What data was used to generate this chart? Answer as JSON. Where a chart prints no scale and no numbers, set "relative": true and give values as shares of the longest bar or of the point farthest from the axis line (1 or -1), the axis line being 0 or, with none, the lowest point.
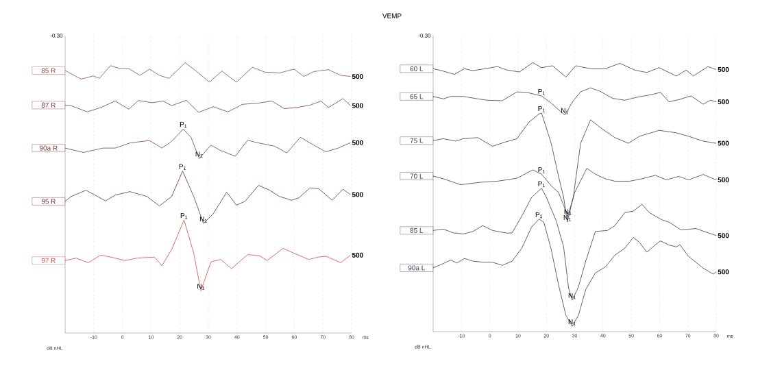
{
  "chart_data": [
    {
      "type": "line",
      "relative": true,
      "xlabel": "ms",
      "xlim": [
        -20,
        80
      ],
      "xticks": [
        -10,
        0,
        10,
        20,
        30,
        40,
        50,
        60,
        70,
        80
      ],
      "grid": "x",
      "line_style": "solid",
      "annotations": [
        "-0.30",
        "dB nHL",
        {
          "text": "P$_{1}$",
          "x": 21.3,
          "y": 0.755
        },
        {
          "text": "N$_{1}$",
          "x": 26.8,
          "y": 0.645
        },
        {
          "text": "P$_{1}$",
          "x": 21.0,
          "y": 0.599
        },
        {
          "text": "N$_{1}$",
          "x": 28.3,
          "y": 0.405
        },
        {
          "text": "P$_{1}$",
          "x": 21.5,
          "y": 0.418
        },
        {
          "text": "N$_{1}$",
          "x": 27.4,
          "y": 0.156
        },
        {
          "text": "500",
          "x": 79.6,
          "y": 0.949
        },
        {
          "text": "500",
          "x": 79.6,
          "y": 0.841
        },
        {
          "text": "500",
          "x": 79.6,
          "y": 0.704
        },
        {
          "text": "500",
          "x": 79.6,
          "y": 0.512
        },
        {
          "text": "500",
          "x": 79.6,
          "y": 0.288
        }
      ],
      "series": [
        {
          "name": "85 R",
          "color": "#8b4a4a",
          "x": [
            -20,
            -14.4,
            -10.2,
            -8.0,
            -4.2,
            -0.8,
            2.2,
            6.1,
            9.5,
            12.9,
            16.3,
            21.9,
            25.7,
            30.4,
            34.7,
            39.8,
            45.4,
            49.7,
            54.8,
            59.9,
            63.3,
            66.8,
            71.9,
            76.2,
            79.6
          ],
          "values": [
            0.971,
            0.939,
            0.951,
            0.942,
            0.989,
            0.978,
            0.978,
            0.953,
            0.976,
            0.953,
            0.942,
            1,
            0.969,
            0.928,
            0.969,
            0.928,
            0.983,
            0.965,
            0.962,
            0.976,
            0.949,
            0.967,
            0.974,
            0.953,
            0.949
          ]
        },
        {
          "name": "87 R",
          "color": "#7a3b3b",
          "x": [
            -20,
            -17.9,
            -12.3,
            -7.6,
            -2.5,
            2.2,
            5.6,
            10.3,
            14.2,
            17.2,
            22.3,
            26.6,
            31.7,
            36.8,
            42.0,
            47.1,
            52.2,
            56.5,
            60.8,
            65.5,
            69.3,
            71.9,
            77.0,
            79.6
          ],
          "values": [
            0.843,
            0.841,
            0.818,
            0.834,
            0.858,
            0.828,
            0.86,
            0.852,
            0.858,
            0.841,
            0.861,
            0.816,
            0.837,
            0.818,
            0.846,
            0.85,
            0.858,
            0.83,
            0.834,
            0.843,
            0.858,
            0.834,
            0.867,
            0.841
          ]
        },
        {
          "name": "90a R",
          "color": "#7a3b3b",
          "x": [
            -20,
            -13.6,
            -6.8,
            -2.5,
            2.6,
            9.5,
            13.8,
            17.2,
            21.3,
            24.0,
            26.8,
            30.9,
            34.3,
            39.4,
            43.7,
            47.1,
            53.1,
            57.4,
            62.1,
            66.8,
            71.0,
            75.3,
            79.6
          ],
          "values": [
            0.684,
            0.668,
            0.684,
            0.684,
            0.703,
            0.712,
            0.684,
            0.709,
            0.755,
            0.723,
            0.645,
            0.695,
            0.675,
            0.654,
            0.713,
            0.704,
            0.691,
            0.666,
            0.724,
            0.695,
            0.67,
            0.684,
            0.704
          ]
        },
        {
          "name": "95 R",
          "color": "#6b2f2f",
          "x": [
            -20,
            -17.9,
            -12.7,
            -5.9,
            -2.5,
            2.6,
            8.6,
            12.9,
            17.2,
            21.0,
            24.9,
            28.3,
            31.7,
            36.4,
            39.8,
            42.8,
            47.5,
            51.4,
            54.8,
            59.1,
            61.6,
            65.5,
            68.5,
            73.2,
            77.0,
            79.6
          ],
          "values": [
            0.487,
            0.505,
            0.528,
            0.489,
            0.51,
            0.523,
            0.505,
            0.47,
            0.505,
            0.599,
            0.505,
            0.405,
            0.441,
            0.521,
            0.473,
            0.487,
            0.546,
            0.528,
            0.505,
            0.491,
            0.5,
            0.537,
            0.534,
            0.491,
            0.532,
            0.512
          ]
        },
        {
          "name": "97 R",
          "color": "#d04848",
          "x": [
            -20,
            -16.2,
            -11.9,
            -7.6,
            -3.3,
            0.9,
            5.2,
            11.2,
            13.8,
            17.2,
            21.5,
            24.9,
            27.4,
            30.9,
            34.3,
            38.1,
            43.7,
            47.9,
            50.5,
            56.1,
            59.9,
            65.0,
            68.5,
            71.0,
            76.2,
            79.6
          ],
          "values": [
            0.268,
            0.277,
            0.26,
            0.288,
            0.279,
            0.268,
            0.277,
            0.281,
            0.249,
            0.309,
            0.418,
            0.295,
            0.156,
            0.263,
            0.272,
            0.238,
            0.29,
            0.286,
            0.268,
            0.313,
            0.295,
            0.272,
            0.281,
            0.284,
            0.26,
            0.288
          ]
        }
      ]
    },
    {
      "type": "line",
      "relative": true,
      "title": "VEMP",
      "xlabel": "ms",
      "xlim": [
        -20,
        80
      ],
      "xticks": [
        -10,
        0,
        10,
        20,
        30,
        40,
        50,
        60,
        70,
        80
      ],
      "grid": "x",
      "line_style": "solid",
      "annotations": [
        "-0.30",
        "dB nHL",
        {
          "text": "P$_{1}$",
          "x": 18.3,
          "y": 0.876
        },
        {
          "text": "N$_{1}$",
          "x": 26.5,
          "y": 0.805
        },
        {
          "text": "P$_{1}$",
          "x": 18.3,
          "y": 0.812
        },
        {
          "text": "N$_{1}$",
          "x": 27.4,
          "y": 0.407
        },
        {
          "text": "P$_{1}$",
          "x": 18.3,
          "y": 0.585
        },
        {
          "text": "N$_{1}$",
          "x": 27.6,
          "y": 0.429
        },
        {
          "text": "P$_{1}$",
          "x": 18.3,
          "y": 0.533
        },
        {
          "text": "N$_{1}$",
          "x": 29.1,
          "y": 0.117
        },
        {
          "text": "P$_{1}$",
          "x": 17.4,
          "y": 0.418
        },
        {
          "text": "N$_{1}$",
          "x": 29.1,
          "y": 0.02
        },
        {
          "text": "500",
          "x": 80,
          "y": 0.974
        },
        {
          "text": "500",
          "x": 80,
          "y": 0.854
        },
        {
          "text": "500",
          "x": 80,
          "y": 0.7
        },
        {
          "text": "500",
          "x": 80,
          "y": 0.564
        },
        {
          "text": "500",
          "x": 80,
          "y": 0.357
        },
        {
          "text": "500",
          "x": 80,
          "y": 0.222
        }
      ],
      "series": [
        {
          "name": "60 L",
          "color": "#3a3a55",
          "x": [
            -20,
            -16.4,
            -12.5,
            -9.0,
            -6.0,
            -1.6,
            2.7,
            6.1,
            10.5,
            15.2,
            18.3,
            22.2,
            26.9,
            30.4,
            35.6,
            40.8,
            46.0,
            51.2,
            55.5,
            59.8,
            65.9,
            69.4,
            71.9,
            77.1,
            80
          ],
          "values": [
            0.977,
            0.968,
            0.956,
            0.977,
            0.97,
            0.977,
            0.985,
            0.972,
            0.965,
            1,
            0.981,
            0.988,
            0.946,
            0.988,
            0.977,
            0.977,
            0.997,
            0.972,
            0.963,
            0.981,
            0.95,
            0.972,
            0.95,
            0.985,
            0.974
          ]
        },
        {
          "name": "65 L",
          "color": "#3a3a55",
          "x": [
            -20,
            -16.4,
            -13.8,
            -9.4,
            -4.2,
            -0.8,
            4.4,
            9.6,
            13.1,
            18.3,
            21.7,
            26.5,
            29.5,
            32.1,
            35.6,
            39.0,
            43.4,
            47.7,
            52.0,
            56.8,
            60.3,
            63.3,
            66.8,
            71.1,
            75.4,
            78.0,
            80
          ],
          "values": [
            0.874,
            0.865,
            0.874,
            0.874,
            0.865,
            0.86,
            0.858,
            0.891,
            0.889,
            0.876,
            0.849,
            0.805,
            0.858,
            0.891,
            0.906,
            0.893,
            0.867,
            0.86,
            0.871,
            0.88,
            0.889,
            0.854,
            0.862,
            0.876,
            0.845,
            0.86,
            0.854
          ]
        },
        {
          "name": "75 L",
          "color": "#3a3a55",
          "x": [
            -20,
            -16.4,
            -12.0,
            -9.4,
            -4.2,
            1.0,
            5.3,
            9.6,
            13.9,
            17.4,
            18.3,
            21.7,
            24.3,
            26.1,
            27.4,
            29.5,
            32.1,
            35.6,
            39.9,
            44.2,
            49.0,
            52.9,
            59.8,
            65.9,
            70.2,
            75.4,
            80
          ],
          "values": [
            0.71,
            0.717,
            0.708,
            0.717,
            0.721,
            0.689,
            0.704,
            0.717,
            0.779,
            0.809,
            0.812,
            0.7,
            0.577,
            0.499,
            0.407,
            0.499,
            0.7,
            0.787,
            0.752,
            0.721,
            0.7,
            0.726,
            0.748,
            0.739,
            0.726,
            0.708,
            0.7
          ]
        },
        {
          "name": "70 L",
          "color": "#3a3a55",
          "x": [
            -20,
            -16.4,
            -10.3,
            -3.4,
            2.7,
            9.6,
            15.2,
            18.3,
            21.7,
            24.3,
            27.6,
            30.0,
            34.3,
            37.3,
            40.8,
            44.2,
            49.4,
            53.8,
            58.5,
            62.4,
            66.8,
            70.2,
            75.4,
            80
          ],
          "values": [
            0.578,
            0.568,
            0.546,
            0.555,
            0.559,
            0.57,
            0.601,
            0.585,
            0.542,
            0.517,
            0.429,
            0.517,
            0.607,
            0.585,
            0.568,
            0.559,
            0.559,
            0.568,
            0.581,
            0.564,
            0.577,
            0.564,
            0.584,
            0.564
          ]
        },
        {
          "name": "85 L",
          "color": "#3a3a55",
          "x": [
            -20,
            -16.4,
            -12.9,
            -9.4,
            -6.0,
            -2.5,
            1.0,
            6.1,
            7.9,
            11.3,
            14.8,
            18.3,
            20.0,
            23.5,
            26.1,
            27.8,
            29.1,
            31.3,
            33.9,
            37.3,
            41.6,
            44.2,
            47.7,
            50.7,
            53.8,
            56.4,
            60.7,
            63.3,
            67.6,
            72.8,
            80
          ],
          "values": [
            0.376,
            0.381,
            0.367,
            0.363,
            0.372,
            0.394,
            0.376,
            0.366,
            0.367,
            0.429,
            0.499,
            0.533,
            0.499,
            0.411,
            0.315,
            0.165,
            0.117,
            0.165,
            0.262,
            0.372,
            0.376,
            0.394,
            0.442,
            0.448,
            0.473,
            0.442,
            0.416,
            0.407,
            0.378,
            0.383,
            0.357
          ]
        },
        {
          "name": "90a L",
          "color": "#3a3a55",
          "x": [
            -20,
            -16.4,
            -13.8,
            -11.6,
            -9.0,
            -6.0,
            -2.5,
            1.0,
            4.4,
            7.9,
            11.3,
            14.8,
            17.4,
            19.1,
            21.7,
            24.3,
            26.9,
            29.1,
            31.3,
            33.9,
            37.3,
            40.8,
            44.2,
            47.7,
            50.7,
            52.9,
            55.5,
            58.1,
            60.3,
            63.3,
            65.9,
            67.2,
            70.2,
            75.4,
            78.9,
            80
          ],
          "values": [
            0.237,
            0.253,
            0.266,
            0.255,
            0.272,
            0.262,
            0.258,
            0.258,
            0.246,
            0.262,
            0.31,
            0.389,
            0.418,
            0.407,
            0.306,
            0.174,
            0.06,
            0.02,
            0.06,
            0.156,
            0.218,
            0.24,
            0.284,
            0.31,
            0.35,
            0.332,
            0.295,
            0.319,
            0.337,
            0.322,
            0.315,
            0.323,
            0.28,
            0.236,
            0.214,
            0.222
          ]
        }
      ]
    }
  ]
}
